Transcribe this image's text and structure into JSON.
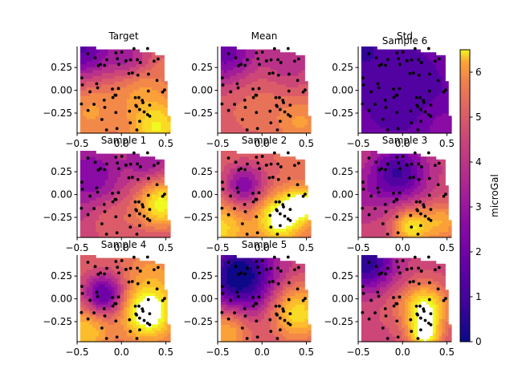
{
  "chart_data": {
    "type": "heatmap",
    "layout": "3x3 grid of contour maps with scattered station points",
    "colormap": "plasma",
    "colorbar": {
      "label": "microGal",
      "range": [
        0,
        6.5
      ],
      "ticks": [
        0,
        1,
        2,
        3,
        4,
        5,
        6
      ]
    },
    "axes": {
      "xlim": [
        -0.5,
        0.55
      ],
      "ylim": [
        -0.47,
        0.48
      ],
      "xticks": [
        -0.5,
        0.0,
        0.5
      ],
      "xtick_labels": [
        "−0.5",
        "0.0",
        "0.5"
      ],
      "yticks": [
        0.25,
        0.0,
        -0.25
      ],
      "ytick_labels": [
        "0.25",
        "0.00",
        "−0.25"
      ]
    },
    "panels": [
      {
        "title": "Target"
      },
      {
        "title": "Mean"
      },
      {
        "title": "Std",
        "overlapping_title": "Sample 6"
      },
      {
        "title": "Sample 1"
      },
      {
        "title": "Sample 2"
      },
      {
        "title": "Sample 3"
      },
      {
        "title": "Sample 4"
      },
      {
        "title": "Sample 5"
      },
      {
        "title": ""
      }
    ]
  }
}
